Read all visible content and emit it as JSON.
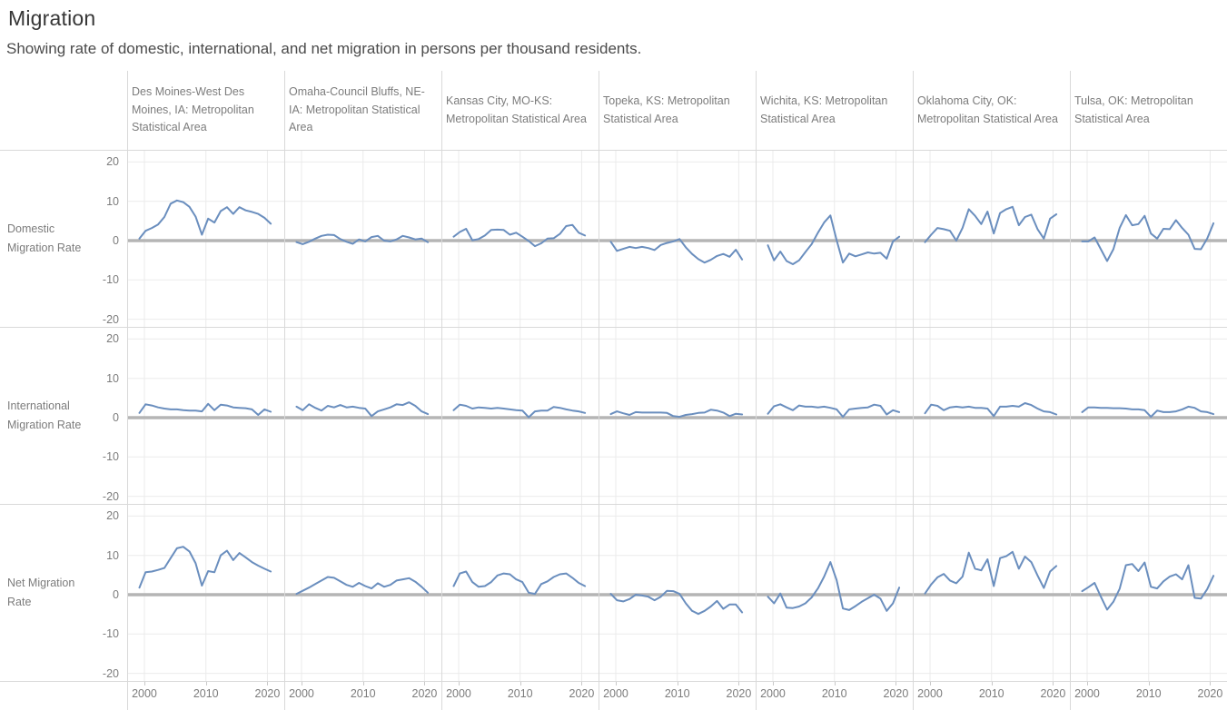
{
  "title": "Migration",
  "subtitle": "Showing rate of domestic, international, and net migration in persons per thousand residents.",
  "chart_data": {
    "type": "line",
    "layout_hint": "small-multiples grid: 3 metric rows x 7 metro columns, shared axes, grid on",
    "unit": "persons per thousand residents",
    "years": [
      2000,
      2001,
      2002,
      2003,
      2004,
      2005,
      2006,
      2007,
      2008,
      2009,
      2010,
      2011,
      2012,
      2013,
      2014,
      2015,
      2016,
      2017,
      2018,
      2019,
      2020,
      2021
    ],
    "x_ticks": [
      2000,
      2010,
      2020
    ],
    "y_ticks": [
      20,
      10,
      0,
      -10,
      -20
    ],
    "ylim": [
      -22.5,
      22.5
    ],
    "line_color": "#6a8ebe",
    "zero_line_color": "#b5b5b5",
    "gridline_color": "#ebebeb",
    "border_color": "#d9d9d9",
    "label_color": "#7c7c7c",
    "columns": [
      "Des Moines-West Des Moines, IA: Metropolitan Statistical Area",
      "Omaha-Council Bluffs, NE-IA: Metropolitan Statistical Area",
      "Kansas City, MO-KS: Metropolitan Statistical Area",
      "Topeka, KS: Metropolitan Statistical Area",
      "Wichita, KS: Metropolitan Statistical Area",
      "Oklahoma City, OK: Metropolitan Statistical Area",
      "Tulsa, OK: Metropolitan Statistical Area"
    ],
    "rows": [
      {
        "id": "domestic",
        "label": "Domestic Migration Rate",
        "series": [
          [
            0.5,
            2.5,
            3.2,
            4.1,
            6.0,
            9.4,
            10.2,
            9.8,
            8.6,
            6.1,
            1.5,
            5.6,
            4.6,
            7.5,
            8.5,
            6.8,
            8.5,
            7.7,
            7.3,
            6.8,
            5.8,
            4.3
          ],
          [
            -0.4,
            -0.9,
            -0.3,
            0.5,
            1.2,
            1.5,
            1.4,
            0.4,
            -0.3,
            -0.8,
            0.3,
            -0.2,
            0.9,
            1.2,
            0.0,
            -0.2,
            0.3,
            1.2,
            0.8,
            0.3,
            0.5,
            -0.4
          ],
          [
            1.0,
            2.2,
            3.0,
            0.1,
            0.4,
            1.3,
            2.7,
            2.8,
            2.7,
            1.5,
            2.0,
            1.0,
            -0.1,
            -1.4,
            -0.7,
            0.5,
            0.6,
            1.7,
            3.7,
            4.0,
            2.0,
            1.3
          ],
          [
            -0.3,
            -2.6,
            -2.1,
            -1.6,
            -1.9,
            -1.6,
            -1.9,
            -2.4,
            -1.1,
            -0.6,
            -0.2,
            0.4,
            -1.7,
            -3.4,
            -4.7,
            -5.6,
            -4.9,
            -3.9,
            -3.4,
            -4.1,
            -2.3,
            -4.8
          ],
          [
            -1.2,
            -5.0,
            -2.8,
            -5.2,
            -6.0,
            -5.0,
            -2.9,
            -0.9,
            2.0,
            4.6,
            6.4,
            0.1,
            -5.6,
            -3.3,
            -4.0,
            -3.5,
            -3.0,
            -3.3,
            -3.1,
            -4.6,
            -0.2,
            1.0
          ],
          [
            -0.4,
            1.5,
            3.2,
            2.9,
            2.5,
            0.0,
            3.2,
            8.0,
            6.3,
            4.2,
            7.4,
            1.8,
            7.0,
            8.0,
            8.6,
            3.9,
            6.0,
            6.6,
            2.9,
            0.5,
            5.6,
            6.7
          ],
          [
            -0.2,
            -0.2,
            0.8,
            -2.2,
            -5.2,
            -2.2,
            3.2,
            6.5,
            3.9,
            4.2,
            6.3,
            1.8,
            0.5,
            3.0,
            2.9,
            5.2,
            3.2,
            1.5,
            -2.1,
            -2.2,
            0.5,
            4.4
          ]
        ]
      },
      {
        "id": "international",
        "label": "International Migration Rate",
        "series": [
          [
            1.2,
            3.4,
            3.1,
            2.6,
            2.3,
            2.1,
            2.1,
            1.9,
            1.8,
            1.8,
            1.6,
            3.5,
            1.9,
            3.3,
            3.1,
            2.6,
            2.5,
            2.4,
            2.1,
            0.7,
            2.1,
            1.5
          ],
          [
            2.8,
            1.9,
            3.4,
            2.5,
            1.8,
            3.0,
            2.6,
            3.2,
            2.6,
            2.8,
            2.5,
            2.3,
            0.4,
            1.6,
            2.1,
            2.6,
            3.4,
            3.2,
            3.9,
            3.0,
            1.6,
            0.9
          ],
          [
            1.9,
            3.3,
            3.0,
            2.3,
            2.6,
            2.5,
            2.3,
            2.5,
            2.3,
            2.1,
            1.9,
            1.8,
            0.1,
            1.6,
            1.8,
            1.8,
            2.7,
            2.5,
            2.1,
            1.8,
            1.6,
            1.2
          ],
          [
            0.9,
            1.6,
            1.1,
            0.7,
            1.4,
            1.3,
            1.3,
            1.3,
            1.3,
            1.2,
            0.4,
            0.2,
            0.7,
            0.9,
            1.2,
            1.3,
            2.0,
            1.8,
            1.3,
            0.4,
            1.0,
            0.8
          ],
          [
            1.0,
            2.9,
            3.4,
            2.6,
            1.9,
            3.1,
            2.8,
            2.8,
            2.6,
            2.8,
            2.5,
            2.1,
            0.2,
            2.1,
            2.3,
            2.5,
            2.6,
            3.3,
            3.0,
            0.8,
            1.9,
            1.4
          ],
          [
            1.1,
            3.3,
            3.0,
            1.9,
            2.6,
            2.8,
            2.6,
            2.8,
            2.5,
            2.5,
            2.3,
            0.4,
            2.8,
            2.8,
            3.0,
            2.8,
            3.7,
            3.2,
            2.3,
            1.6,
            1.4,
            0.8
          ],
          [
            1.4,
            2.6,
            2.6,
            2.5,
            2.5,
            2.4,
            2.4,
            2.3,
            2.1,
            2.1,
            1.9,
            0.2,
            1.8,
            1.4,
            1.4,
            1.6,
            2.1,
            2.8,
            2.5,
            1.6,
            1.4,
            0.9
          ]
        ]
      },
      {
        "id": "net",
        "label": "Net Migration Rate",
        "series": [
          [
            1.8,
            5.7,
            5.9,
            6.3,
            6.8,
            9.3,
            11.8,
            12.2,
            11.0,
            8.0,
            2.3,
            6.0,
            5.7,
            10.0,
            11.2,
            8.8,
            10.6,
            9.5,
            8.3,
            7.4,
            6.6,
            5.9
          ],
          [
            0.2,
            1.0,
            1.8,
            2.7,
            3.6,
            4.5,
            4.3,
            3.4,
            2.5,
            2.0,
            3.0,
            2.2,
            1.6,
            2.9,
            2.0,
            2.5,
            3.6,
            3.9,
            4.2,
            3.3,
            2.0,
            0.5
          ],
          [
            2.2,
            5.4,
            5.9,
            3.2,
            2.0,
            2.2,
            3.2,
            4.9,
            5.4,
            5.2,
            3.9,
            3.2,
            0.5,
            0.2,
            2.7,
            3.4,
            4.5,
            5.2,
            5.4,
            4.3,
            3.0,
            2.2
          ],
          [
            0.2,
            -1.4,
            -1.7,
            -1.1,
            0.0,
            -0.2,
            -0.5,
            -1.4,
            -0.5,
            1.0,
            0.9,
            0.2,
            -2.2,
            -4.1,
            -4.9,
            -4.1,
            -3.0,
            -1.6,
            -3.6,
            -2.5,
            -2.5,
            -4.5
          ],
          [
            -0.5,
            -2.2,
            0.3,
            -3.3,
            -3.4,
            -3.0,
            -2.2,
            -0.7,
            1.6,
            4.6,
            8.3,
            3.7,
            -3.5,
            -3.9,
            -2.9,
            -1.8,
            -0.9,
            0.0,
            -1.0,
            -4.1,
            -2.2,
            1.8
          ],
          [
            0.3,
            2.6,
            4.4,
            5.3,
            3.6,
            2.9,
            4.6,
            10.7,
            6.6,
            6.2,
            9.0,
            2.2,
            9.3,
            9.8,
            10.9,
            6.6,
            9.7,
            8.3,
            4.9,
            1.7,
            5.9,
            7.3
          ],
          [
            0.9,
            1.9,
            3.0,
            -0.5,
            -3.8,
            -1.8,
            1.5,
            7.5,
            7.8,
            6.0,
            8.2,
            2.0,
            1.6,
            3.4,
            4.6,
            5.2,
            3.9,
            7.5,
            -0.8,
            -1.0,
            1.4,
            4.8
          ]
        ]
      }
    ]
  }
}
